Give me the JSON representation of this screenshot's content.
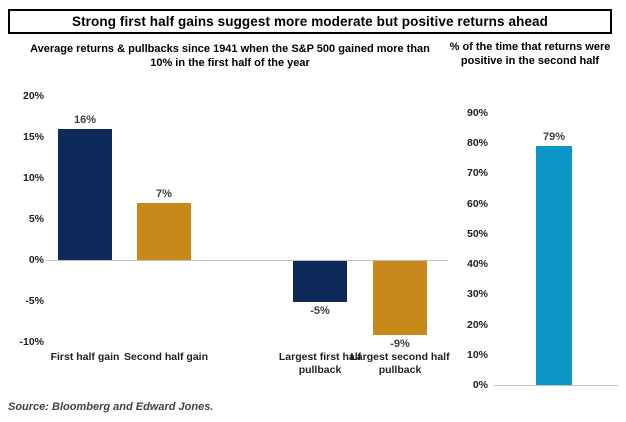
{
  "header": {
    "title": "Strong first half gains suggest more moderate but positive returns ahead"
  },
  "source": {
    "text": "Source: Bloomberg and Edward Jones."
  },
  "colors": {
    "navy": "#0E2A5A",
    "gold": "#C6891A",
    "blue": "#0C95C7",
    "axis_line": "#BFBFBF"
  },
  "chart_data": [
    {
      "type": "bar",
      "title": "Average returns & pullbacks since 1941 when the S&P 500 gained more than 10% in the first half of the year",
      "categories": [
        "First half gain",
        "Second half gain",
        "Largest first half pullback",
        "Largest second half pullback"
      ],
      "values": [
        16,
        7,
        -5,
        -9
      ],
      "value_labels": [
        "16%",
        "7%",
        "-5%",
        "-9%"
      ],
      "bar_colors": [
        "navy",
        "gold",
        "navy",
        "gold"
      ],
      "ylim": [
        -10,
        20
      ],
      "ytick_values": [
        20,
        15,
        10,
        5,
        0,
        -5,
        -10
      ],
      "ytick_labels": [
        "20%",
        "15%",
        "10%",
        "5%",
        "0%",
        "-5%",
        "-10%"
      ],
      "xlabel": "",
      "ylabel": "",
      "grid": false,
      "legend": "none"
    },
    {
      "type": "bar",
      "title": "% of the time that returns were positive in the second half",
      "categories": [
        ""
      ],
      "values": [
        79
      ],
      "value_labels": [
        "79%"
      ],
      "bar_colors": [
        "blue"
      ],
      "ylim": [
        0,
        90
      ],
      "ytick_values": [
        90,
        80,
        70,
        60,
        50,
        40,
        30,
        20,
        10,
        0
      ],
      "ytick_labels": [
        "90%",
        "80%",
        "70%",
        "60%",
        "50%",
        "40%",
        "30%",
        "20%",
        "10%",
        "0%"
      ],
      "xlabel": "",
      "ylabel": "",
      "grid": false,
      "legend": "none"
    }
  ]
}
